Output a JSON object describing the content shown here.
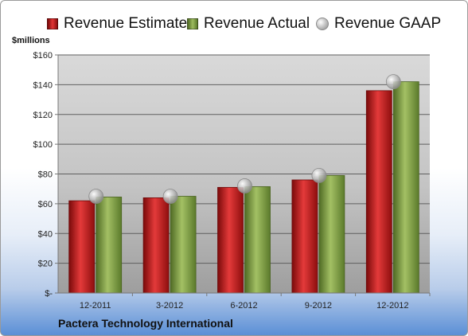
{
  "chart_data": {
    "type": "bar",
    "title": "",
    "ylabel": "$millions",
    "footer": "Pactera Technology International",
    "categories": [
      "12-2011",
      "3-2012",
      "6-2012",
      "9-2012",
      "12-2012"
    ],
    "series": [
      {
        "name": "Revenue Estimate",
        "kind": "bar",
        "color": "#cc1a1a",
        "values": [
          62,
          64,
          71,
          76,
          136
        ]
      },
      {
        "name": "Revenue Actual",
        "kind": "bar",
        "color": "#8aa650",
        "values": [
          64.5,
          65,
          71.5,
          79,
          142
        ]
      },
      {
        "name": "Revenue GAAP",
        "kind": "marker",
        "color": "#a9a9a9",
        "values": [
          65,
          65,
          72,
          79,
          142
        ]
      }
    ],
    "ylim": [
      0,
      160
    ],
    "yticks": [
      0,
      20,
      40,
      60,
      80,
      100,
      120,
      140,
      160
    ],
    "ytick_labels": [
      "$-",
      "$20",
      "$40",
      "$60",
      "$80",
      "$100",
      "$120",
      "$140",
      "$160"
    ],
    "grid": true,
    "legend_position": "top"
  }
}
